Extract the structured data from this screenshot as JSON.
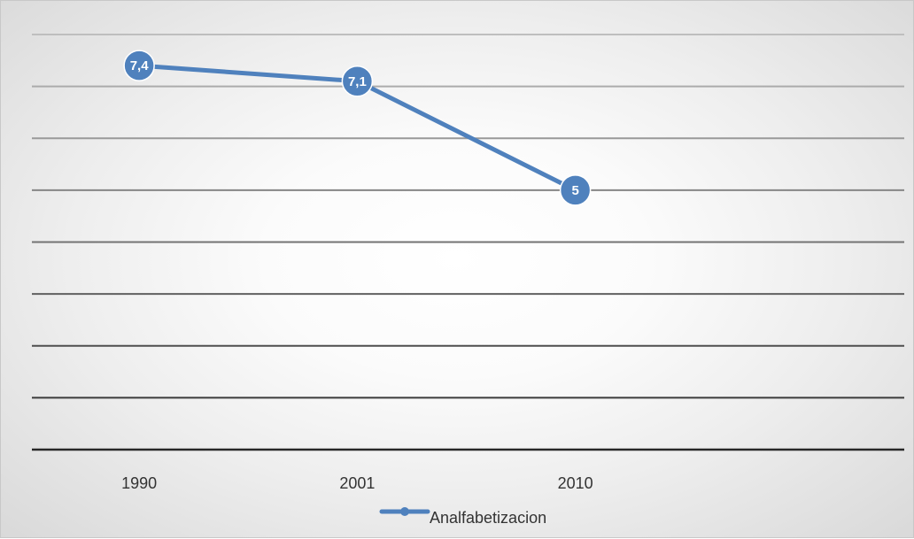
{
  "chart_data": {
    "type": "line",
    "categories": [
      "1990",
      "2001",
      "2010"
    ],
    "series": [
      {
        "name": "Analfabetizacion",
        "values": [
          7.4,
          7.1,
          5
        ],
        "data_labels": [
          "7,4",
          "7,1",
          "5"
        ],
        "color": "#4f81bd"
      }
    ],
    "ylim": [
      0,
      8
    ],
    "grid": true,
    "y_tick_labels_visible": false,
    "legend_position": "bottom"
  }
}
